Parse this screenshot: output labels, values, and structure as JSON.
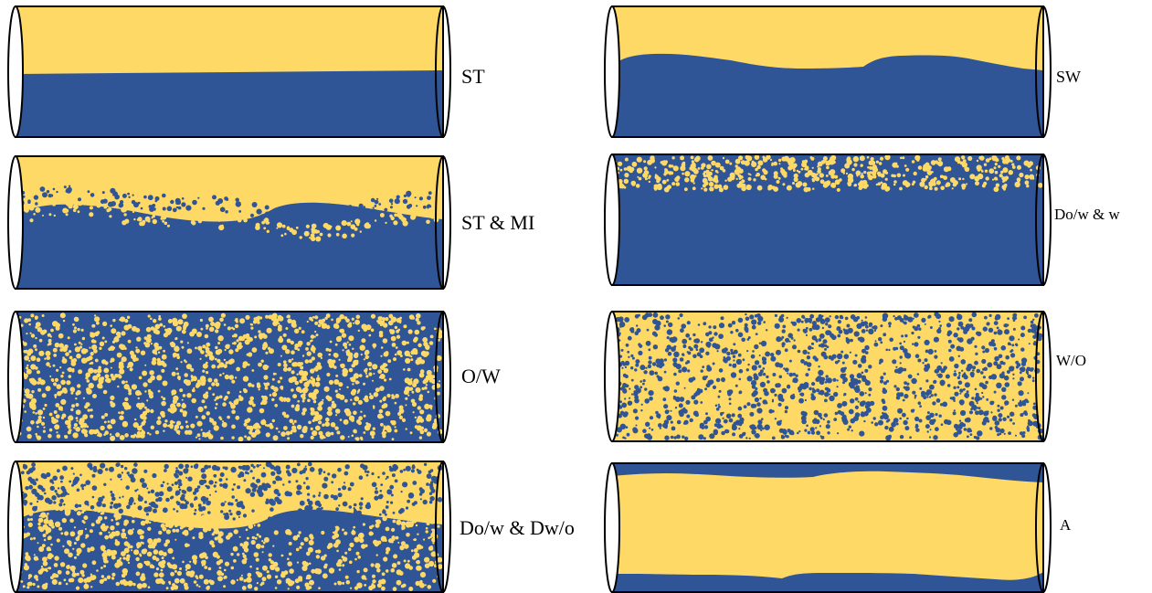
{
  "colors": {
    "oil": "#FFD966",
    "water": "#2F5597",
    "outline": "#000000"
  },
  "pipes": [
    {
      "id": "st",
      "label": "ST",
      "column": "left",
      "row": 1,
      "pattern": "stratified"
    },
    {
      "id": "st-mi",
      "label": "ST & MI",
      "column": "left",
      "row": 2,
      "pattern": "stratified-mixed-interface"
    },
    {
      "id": "ow",
      "label": "O/W",
      "column": "left",
      "row": 3,
      "pattern": "oil-in-water-dispersion"
    },
    {
      "id": "dow-dwo",
      "label": "Do/w & Dw/o",
      "column": "left",
      "row": 4,
      "pattern": "dual-dispersion"
    },
    {
      "id": "sw",
      "label": "SW",
      "column": "right",
      "row": 1,
      "pattern": "stratified-wavy"
    },
    {
      "id": "dow-w",
      "label": "Do/w & w",
      "column": "right",
      "row": 2,
      "pattern": "dispersion-over-water"
    },
    {
      "id": "wo",
      "label": "W/O",
      "column": "right",
      "row": 3,
      "pattern": "water-in-oil-dispersion"
    },
    {
      "id": "a",
      "label": "A",
      "column": "right",
      "row": 4,
      "pattern": "annular"
    }
  ]
}
